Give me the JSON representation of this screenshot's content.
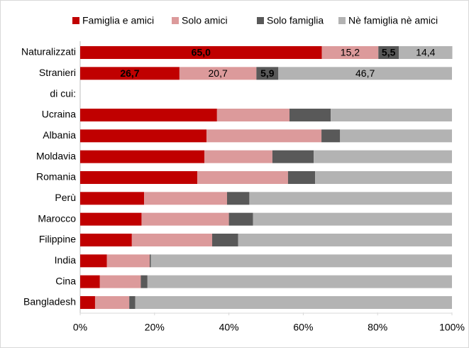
{
  "chart_data": {
    "type": "stacked_barh",
    "categories": [
      "Naturalizzati",
      "Stranieri",
      "di cui:",
      "Ucraina",
      "Albania",
      "Moldavia",
      "Romania",
      "Perù",
      "Marocco",
      "Filippine",
      "India",
      "Cina",
      "Bangladesh"
    ],
    "series": [
      {
        "name": "Famiglia e amici",
        "color": "#c00000",
        "label_color": "#ffffff",
        "values": [
          65.0,
          26.7,
          null,
          36.8,
          34.0,
          33.4,
          31.5,
          17.2,
          16.5,
          13.9,
          7.2,
          5.3,
          4.0
        ],
        "value_labels": [
          "65,0",
          "26,7",
          null,
          null,
          null,
          null,
          null,
          null,
          null,
          null,
          null,
          null,
          null
        ]
      },
      {
        "name": "Solo amici",
        "color": "#dc9a9b",
        "label_color": "#000000",
        "values": [
          15.2,
          20.7,
          null,
          19.5,
          30.9,
          18.3,
          24.4,
          22.3,
          23.5,
          21.6,
          11.5,
          11.0,
          9.2
        ],
        "value_labels": [
          "15,2",
          "20,7",
          null,
          null,
          null,
          null,
          null,
          null,
          null,
          null,
          null,
          null,
          null
        ]
      },
      {
        "name": "Solo famiglia",
        "color": "#595959",
        "label_color": "#ffffff",
        "values": [
          5.5,
          5.9,
          null,
          11.1,
          5.0,
          11.1,
          7.3,
          6.0,
          6.5,
          7.0,
          0.3,
          1.8,
          1.6
        ],
        "value_labels": [
          "5,5",
          "5,9",
          null,
          null,
          null,
          null,
          null,
          null,
          null,
          null,
          null,
          null,
          null
        ]
      },
      {
        "name": "Nè famiglia nè amici",
        "color": "#b3b3b3",
        "label_color": "#000000",
        "values": [
          14.4,
          46.7,
          null,
          32.6,
          30.1,
          37.2,
          36.8,
          54.5,
          53.5,
          57.5,
          81.0,
          81.9,
          85.2
        ],
        "value_labels": [
          "14,4",
          "46,7",
          null,
          null,
          null,
          null,
          null,
          null,
          null,
          null,
          null,
          null,
          null
        ]
      }
    ],
    "xlim": [
      0,
      100
    ],
    "xticks": [
      {
        "value": 0,
        "label": "0%"
      },
      {
        "value": 20,
        "label": "20%"
      },
      {
        "value": 40,
        "label": "40%"
      },
      {
        "value": 60,
        "label": "60%"
      },
      {
        "value": 80,
        "label": "80%"
      },
      {
        "value": 100,
        "label": "100%"
      }
    ],
    "legend": "top"
  }
}
